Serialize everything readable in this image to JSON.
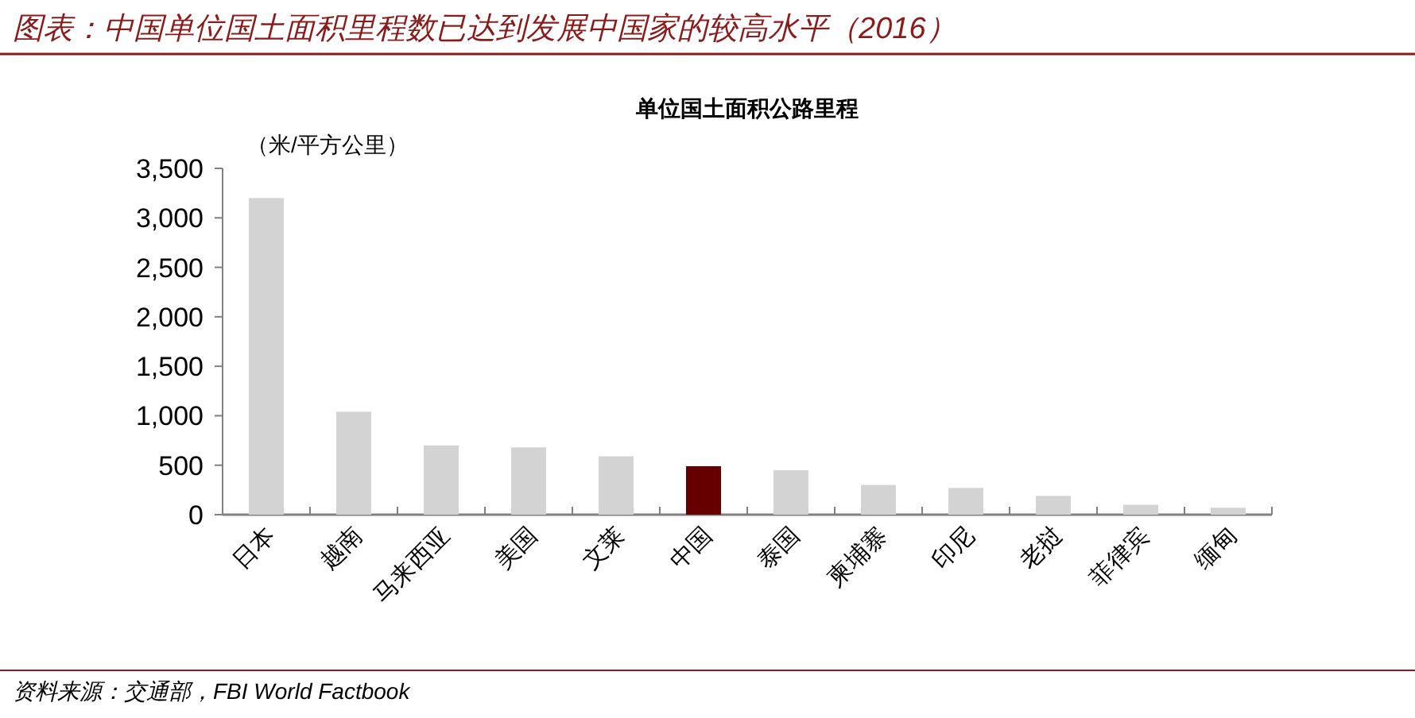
{
  "chart_data": {
    "type": "bar",
    "title": "图表：中国单位国土面积里程数已达到发展中国家的较高水平（2016）",
    "subtitle": "单位国土面积公路里程",
    "ylabel": "（米/平方公里）",
    "categories": [
      "日本",
      "越南",
      "马来西亚",
      "美国",
      "文莱",
      "中国",
      "泰国",
      "柬埔寨",
      "印尼",
      "老挝",
      "菲律宾",
      "缅甸"
    ],
    "values": [
      3200,
      1040,
      700,
      680,
      590,
      490,
      450,
      300,
      270,
      190,
      100,
      70
    ],
    "colors": [
      "#d3d3d3",
      "#d3d3d3",
      "#d3d3d3",
      "#d3d3d3",
      "#d3d3d3",
      "#660000",
      "#d3d3d3",
      "#d3d3d3",
      "#d3d3d3",
      "#d3d3d3",
      "#d3d3d3",
      "#d3d3d3"
    ],
    "ylim": [
      0,
      3500
    ],
    "yticks": [
      0,
      {
        "value": 500,
        "label": "500"
      },
      {
        "value": 1000,
        "label": "1,000"
      },
      {
        "value": 1500,
        "label": "1,500"
      },
      {
        "value": 2000,
        "label": "2,000"
      },
      {
        "value": 2500,
        "label": "2,500"
      },
      {
        "value": 3000,
        "label": "3,000"
      },
      {
        "value": 3500,
        "label": "3,500"
      }
    ],
    "annotations": [
      "资料来源：交通部，FBI World Factbook"
    ]
  }
}
